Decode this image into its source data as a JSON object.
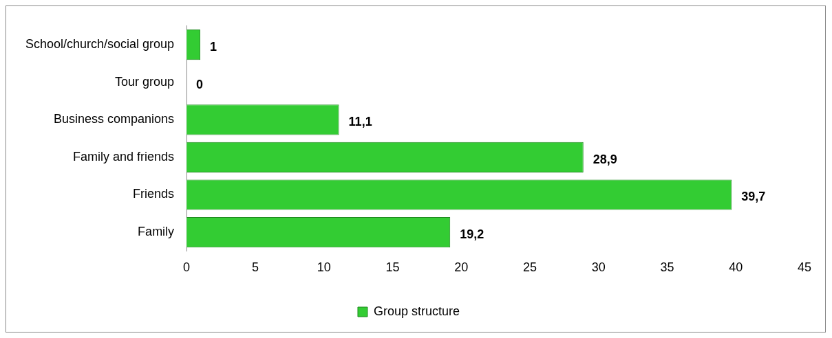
{
  "chart_data": {
    "type": "bar",
    "orientation": "horizontal",
    "categories": [
      "School/church/social group",
      "Tour group",
      "Business companions",
      "Family and friends",
      "Friends",
      "Family"
    ],
    "series": [
      {
        "name": "Group structure",
        "color": "#33cc33",
        "values": [
          1,
          0,
          11.1,
          28.9,
          39.7,
          19.2
        ],
        "value_labels": [
          "1",
          "0",
          "11,1",
          "28,9",
          "39,7",
          "19,2"
        ]
      }
    ],
    "xlim": [
      0,
      45
    ],
    "xticks": [
      0,
      5,
      10,
      15,
      20,
      25,
      30,
      35,
      40,
      45
    ],
    "grid": false,
    "legend": "bottom"
  }
}
